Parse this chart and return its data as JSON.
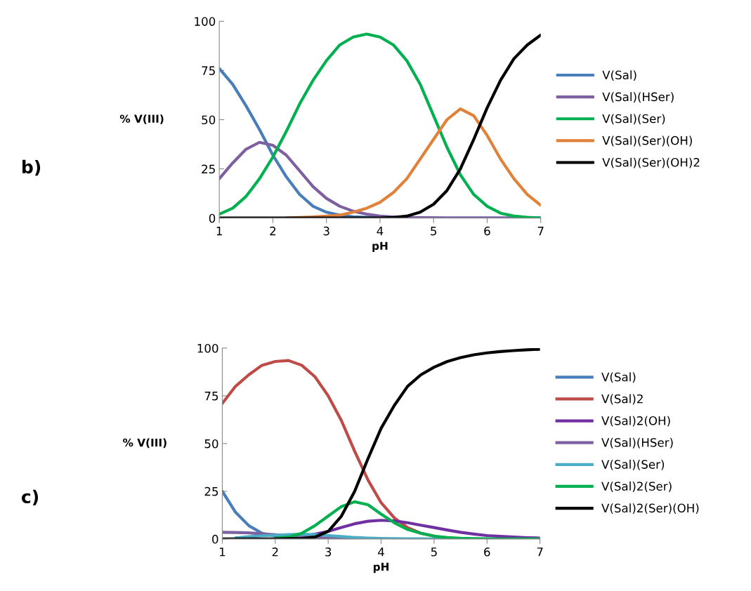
{
  "chart_data": [
    {
      "type": "line",
      "annotations": [
        "b)"
      ],
      "xlabel": "pH",
      "ylabel": "% V(III)",
      "xlim": [
        1,
        7
      ],
      "xticks": [
        1,
        2,
        3,
        4,
        5,
        6,
        7
      ],
      "ylim": [
        0,
        100
      ],
      "yticks": [
        0,
        25,
        50,
        75,
        100
      ],
      "grid": false,
      "legend": "right",
      "marker": "none",
      "line_style": "solid",
      "x": [
        1,
        1.25,
        1.5,
        1.75,
        2,
        2.25,
        2.5,
        2.75,
        3,
        3.25,
        3.5,
        3.75,
        4,
        4.25,
        4.5,
        4.75,
        5,
        5.25,
        5.5,
        5.75,
        6,
        6.25,
        6.5,
        6.75,
        7
      ],
      "series": [
        {
          "name": "V(Sal)",
          "color": "#4a7ebb",
          "values": [
            76,
            68,
            57,
            45,
            32,
            21,
            12,
            6,
            3,
            1.5,
            0.7,
            0.4,
            0.2,
            0,
            0,
            0,
            0,
            0,
            0,
            0,
            0,
            0,
            0,
            0,
            0
          ]
        },
        {
          "name": "V(Sal)(HSer)",
          "color": "#7d60a0",
          "values": [
            20,
            28,
            35,
            38.5,
            37,
            32,
            24,
            16,
            10,
            6,
            3.5,
            2,
            1,
            0.6,
            0.3,
            0.2,
            0.1,
            0,
            0,
            0,
            0,
            0,
            0,
            0,
            0
          ]
        },
        {
          "name": "V(Sal)(Ser)",
          "color": "#00b050",
          "values": [
            2,
            5,
            11,
            20,
            31,
            44,
            58,
            70,
            80,
            88,
            92,
            93.5,
            92,
            88,
            80,
            68,
            52,
            36,
            22,
            12,
            6,
            2.5,
            1,
            0.4,
            0
          ]
        },
        {
          "name": "V(Sal)(Ser)(OH)",
          "color": "#e0823b",
          "values": [
            null,
            null,
            null,
            null,
            null,
            0,
            0.3,
            0.6,
            1,
            1.5,
            3,
            5,
            8,
            13,
            20,
            30,
            40,
            50,
            55.5,
            52,
            42,
            30,
            20,
            12,
            6.5
          ]
        },
        {
          "name": "V(Sal)(Ser)(OH)2",
          "color": "#000000",
          "values": [
            0,
            0,
            0,
            0,
            0,
            0,
            0,
            0,
            0,
            0,
            0,
            0,
            0,
            0.3,
            1,
            3,
            7,
            14,
            25,
            40,
            56,
            70,
            81,
            88,
            93
          ]
        }
      ]
    },
    {
      "type": "line",
      "annotations": [
        "c)"
      ],
      "xlabel": "pH",
      "ylabel": "% V(III)",
      "xlim": [
        1,
        7
      ],
      "xticks": [
        1,
        2,
        3,
        4,
        5,
        6,
        7
      ],
      "ylim": [
        0,
        100
      ],
      "yticks": [
        0,
        25,
        50,
        75,
        100
      ],
      "grid": false,
      "legend": "right",
      "marker": "none",
      "line_style": "solid",
      "x": [
        1,
        1.25,
        1.5,
        1.75,
        2,
        2.25,
        2.5,
        2.75,
        3,
        3.25,
        3.5,
        3.75,
        4,
        4.25,
        4.5,
        4.75,
        5,
        5.25,
        5.5,
        5.75,
        6,
        6.25,
        6.5,
        6.75,
        7
      ],
      "series": [
        {
          "name": "V(Sal)",
          "color": "#4a7ebb",
          "values": [
            25,
            14,
            7,
            3,
            1.5,
            0.7,
            0.3,
            0.1,
            0,
            null,
            null,
            null,
            null,
            null,
            null,
            null,
            null,
            null,
            null,
            null,
            null,
            null,
            null,
            null,
            null
          ]
        },
        {
          "name": "V(Sal)2",
          "color": "#be4b48",
          "values": [
            71,
            80,
            86,
            91,
            93,
            93.5,
            91,
            85,
            75,
            62,
            46,
            31,
            19,
            11,
            6,
            3,
            1.5,
            null,
            null,
            null,
            null,
            null,
            null,
            null,
            null
          ]
        },
        {
          "name": "V(Sal)2(OH)",
          "color": "#7030a0",
          "values": [
            null,
            null,
            null,
            null,
            0.5,
            0.8,
            1.5,
            2.5,
            4,
            6,
            8,
            9.3,
            9.8,
            9.5,
            8.5,
            7.2,
            6,
            4.7,
            3.5,
            2.6,
            1.8,
            1.4,
            1,
            0.7,
            0.5
          ]
        },
        {
          "name": "V(Sal)(HSer)",
          "color": "#7d60a0",
          "values": [
            3.5,
            3.4,
            3.2,
            2.7,
            2.2,
            1.7,
            1.2,
            0.8,
            0.5,
            0.3,
            0.2,
            0.1,
            0,
            null,
            null,
            null,
            null,
            null,
            null,
            null,
            null,
            null,
            null,
            null,
            null
          ]
        },
        {
          "name": "V(Sal)(Ser)",
          "color": "#4bacc6",
          "values": [
            null,
            0.6,
            1.2,
            1.7,
            2,
            2.3,
            2.5,
            2.3,
            1.8,
            1.3,
            0.8,
            0.5,
            0.3,
            0.2,
            0.1,
            0.1,
            0,
            0,
            null,
            null,
            null,
            null,
            null,
            null,
            null
          ]
        },
        {
          "name": "V(Sal)2(Ser)",
          "color": "#00b050",
          "values": [
            null,
            null,
            null,
            null,
            0.5,
            1,
            3,
            7,
            12,
            17,
            19.5,
            18,
            13,
            8.5,
            5,
            3,
            1.5,
            0.8,
            0.4,
            0.2,
            0.1,
            0,
            0,
            0,
            0
          ]
        },
        {
          "name": "V(Sal)2(Ser)(OH)",
          "color": "#000000",
          "values": [
            0,
            0,
            0,
            0,
            0,
            0.2,
            0.3,
            1,
            4,
            12,
            25,
            42,
            58,
            70,
            80,
            86,
            90,
            93,
            95,
            96.5,
            97.5,
            98.2,
            98.7,
            99.1,
            99.4
          ]
        }
      ]
    }
  ]
}
